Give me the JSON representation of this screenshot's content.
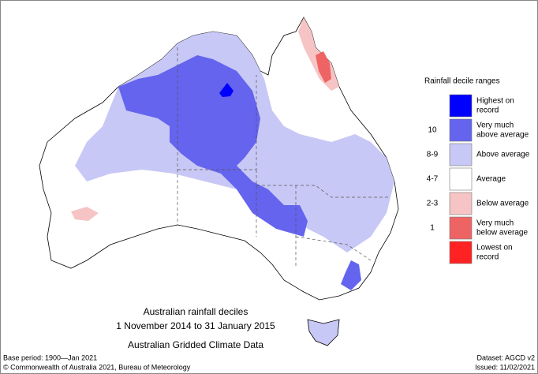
{
  "legend": {
    "title": "Rainfall decile ranges",
    "items": [
      {
        "lines": [
          "Highest on",
          "record"
        ],
        "color": "#0000ff"
      },
      {
        "decile": "10",
        "lines": [
          "Very much",
          "above average"
        ],
        "color": "#6464ee"
      },
      {
        "decile": "8-9",
        "lines": [
          "Above average"
        ],
        "color": "#c8c8f6"
      },
      {
        "decile": "4-7",
        "lines": [
          "Average"
        ],
        "color": "#ffffff"
      },
      {
        "decile": "2-3",
        "lines": [
          "Below average"
        ],
        "color": "#f6c4c4"
      },
      {
        "decile": "1",
        "lines": [
          "Very much",
          "below average"
        ],
        "color": "#ee6464"
      },
      {
        "lines": [
          "Lowest on",
          "record"
        ],
        "color": "#ff2222"
      }
    ]
  },
  "caption": {
    "title": "Australian rainfall deciles",
    "period": "1 November 2014 to 31 January 2015",
    "source": "Australian Gridded Climate Data"
  },
  "footer": {
    "base_period": "Base period: 1900—Jan 2021",
    "dataset": "Dataset: AGCD v2",
    "copyright": "© Commonwealth of Australia 2021, Bureau of Meteorology",
    "issued": "Issued: 11/02/2021"
  }
}
